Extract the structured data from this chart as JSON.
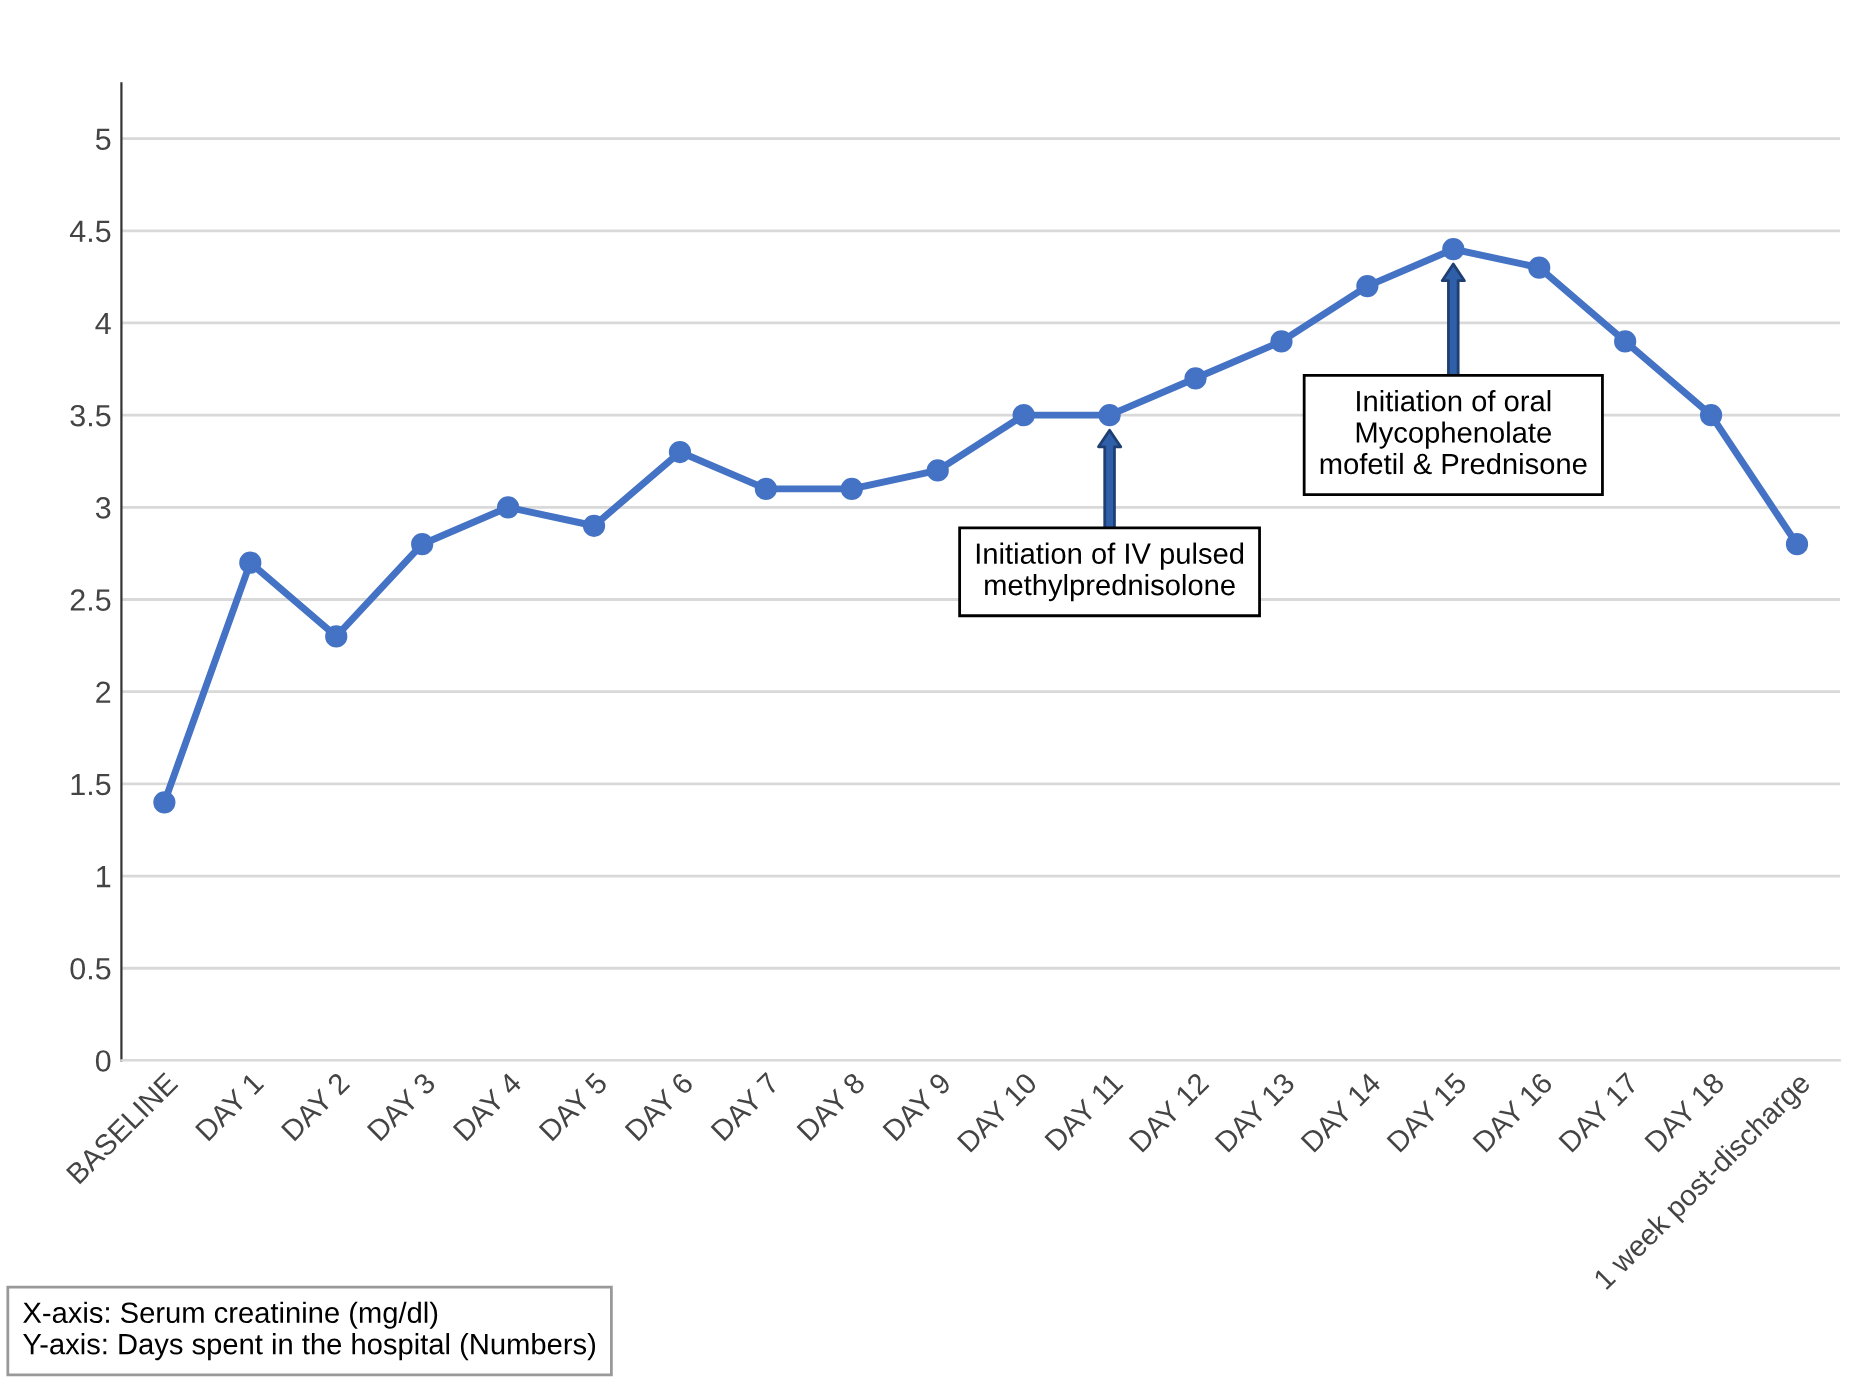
{
  "chart_data": {
    "type": "line",
    "categories": [
      "BASELINE",
      "DAY 1",
      "DAY 2",
      "DAY 3",
      "DAY 4",
      "DAY 5",
      "DAY 6",
      "DAY 7",
      "DAY 8",
      "DAY 9",
      "DAY 10",
      "DAY 11",
      "DAY 12",
      "DAY 13",
      "DAY 14",
      "DAY 15",
      "DAY 16",
      "DAY 17",
      "DAY 18",
      "1 week post-discharge"
    ],
    "values": [
      1.4,
      2.7,
      2.3,
      2.8,
      3.0,
      2.9,
      3.3,
      3.1,
      3.1,
      3.2,
      3.5,
      3.5,
      3.7,
      3.9,
      4.2,
      4.4,
      4.3,
      3.9,
      3.5,
      2.8
    ],
    "color": "#4472c4",
    "marker": "circle",
    "line_style": "solid",
    "ylim": [
      0,
      5.3
    ],
    "yticks": [
      0,
      0.5,
      1,
      1.5,
      2,
      2.5,
      3,
      3.5,
      4,
      4.5,
      5
    ],
    "grid": "y",
    "annotations": [
      "Initiation of IV pulsed\nmethylprednisolone",
      "Initiation of oral\nMycophenolate\nmofetil & Prednisone",
      "X-axis: Serum creatinine (mg/dl)\nY-axis: Days spent in the hospital (Numbers)"
    ]
  }
}
